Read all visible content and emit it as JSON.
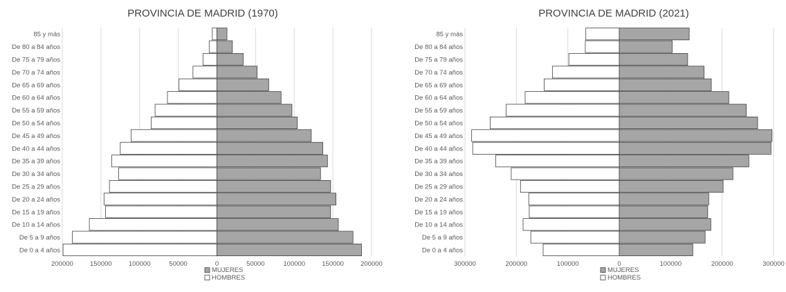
{
  "chart_data": [
    {
      "type": "bar",
      "orientation": "horizontal-pyramid",
      "title": "PROVINCIA DE MADRID (1970)",
      "categories": [
        "85 y más",
        "De 80 a 84 años",
        "De 75 a 79 años",
        "De 70 a 74 años",
        "De 65 a 69 años",
        "De 60 a 64 años",
        "De 55 a 59 años",
        "De 50 a 54 años",
        "De 45 a 49 años",
        "De 40 a 44 años",
        "De 35 a 39 años",
        "De 30 a 34 años",
        "De 25 a 29 años",
        "De 20 a 24 años",
        "De 15 a 19 años",
        "De 10 a 14 años",
        "De 5 a 9 años",
        "De 0 a 4 años"
      ],
      "series": [
        {
          "name": "MUJERES",
          "color": "#a6a6a6",
          "side": "right",
          "values": [
            13000,
            20000,
            34000,
            52000,
            67000,
            83000,
            97000,
            104000,
            122000,
            137000,
            143000,
            134000,
            147000,
            154000,
            147000,
            157000,
            176000,
            187000
          ]
        },
        {
          "name": "HOMBRES",
          "color": "#ffffff",
          "side": "left",
          "values": [
            6000,
            10000,
            18000,
            31000,
            49000,
            64000,
            80000,
            85000,
            111000,
            125000,
            136000,
            127000,
            139000,
            146000,
            144000,
            165000,
            187000,
            199000
          ]
        }
      ],
      "xlim": [
        -200000,
        200000
      ],
      "xticks": [
        "200000",
        "150000",
        "100000",
        "50000",
        "0",
        "50000",
        "100000",
        "150000",
        "200000"
      ],
      "grid": true,
      "legend_position": "bottom"
    },
    {
      "type": "bar",
      "orientation": "horizontal-pyramid",
      "title": "PROVINCIA DE MADRID (2021)",
      "categories": [
        "85 y más",
        "De 80 a 84 años",
        "De 75 a 79 años",
        "De 70 a 74 años",
        "De 65 a 69 años",
        "De 60 a 64 años",
        "De 55 a 59 años",
        "De 50 a 54 años",
        "De 45 a 49 años",
        "De 40 a 44 años",
        "De 35 a 39 años",
        "De 30 a 34 años",
        "De 25 a 29 años",
        "De 20 a 24 años",
        "De 15 a 19 años",
        "De 10 a 14 años",
        "De 5 a 9 años",
        "De 0 a 4 años"
      ],
      "series": [
        {
          "name": "MUJERES",
          "color": "#a6a6a6",
          "side": "right",
          "values": [
            136000,
            103000,
            133000,
            165000,
            179000,
            213000,
            247000,
            269000,
            297000,
            295000,
            252000,
            221000,
            202000,
            174000,
            172000,
            178000,
            167000,
            143000
          ]
        },
        {
          "name": "HOMBRES",
          "color": "#ffffff",
          "side": "left",
          "values": [
            65000,
            66000,
            98000,
            130000,
            146000,
            183000,
            220000,
            251000,
            287000,
            285000,
            240000,
            210000,
            192000,
            176000,
            175000,
            187000,
            172000,
            148000
          ]
        }
      ],
      "xlim": [
        -300000,
        300000
      ],
      "xticks": [
        "300000",
        "200000",
        "100000",
        "0",
        "100000",
        "200000",
        "300000"
      ],
      "grid": true,
      "legend_position": "bottom"
    }
  ]
}
